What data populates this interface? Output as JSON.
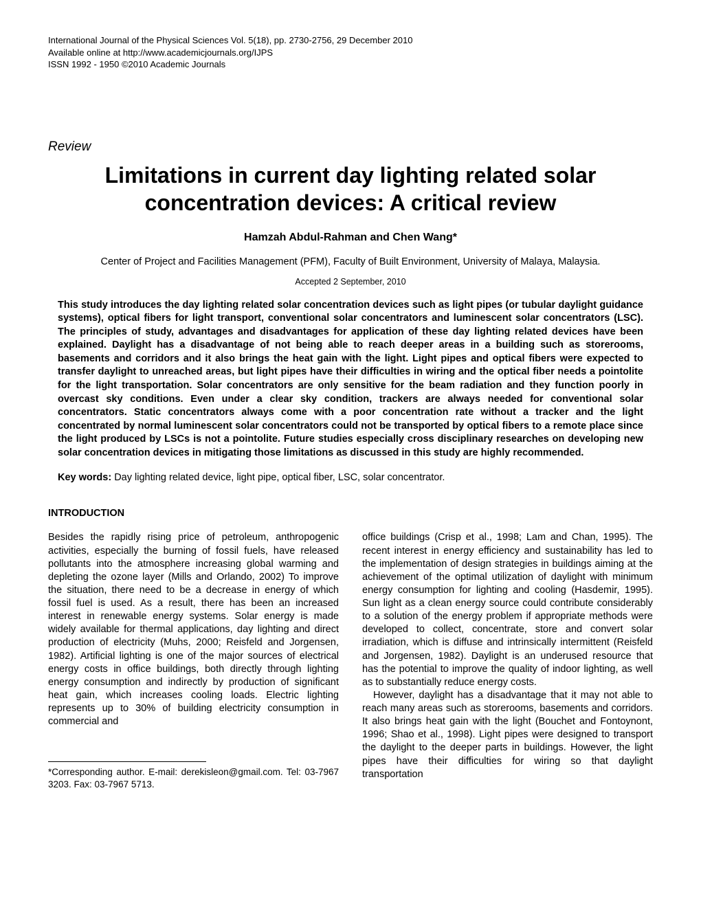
{
  "journal": {
    "line1": "International Journal of the Physical Sciences Vol. 5(18), pp. 2730-2756, 29 December 2010",
    "line2": "Available online at http://www.academicjournals.org/IJPS",
    "line3": "ISSN 1992 - 1950 ©2010 Academic Journals"
  },
  "review_label": "Review",
  "title": "Limitations in current day lighting related solar concentration devices: A critical review",
  "authors": "Hamzah Abdul-Rahman and Chen Wang*",
  "affiliation": "Center of Project and Facilities Management (PFM), Faculty of Built Environment, University of Malaya, Malaysia.",
  "accepted": "Accepted 2 September, 2010",
  "abstract": "This study introduces the day lighting related solar concentration devices such as light pipes (or tubular daylight guidance systems), optical fibers for light transport, conventional solar concentrators and luminescent solar concentrators (LSC). The principles of study, advantages and disadvantages for application of these day lighting related devices have been explained. Daylight has a disadvantage of not being able to reach deeper areas in a building such as storerooms, basements and corridors and it also brings the heat gain with the light. Light pipes and optical fibers were expected to transfer daylight to unreached areas, but light pipes have their difficulties in wiring and the optical fiber needs a pointolite for the light transportation. Solar concentrators are only sensitive for the beam radiation and they function poorly in overcast sky conditions. Even under a clear sky condition, trackers are always needed for conventional solar concentrators. Static concentrators always come with a poor concentration rate without a tracker and the light concentrated by normal luminescent solar concentrators could not be transported by optical fibers to a remote place since the light produced by LSCs is not a pointolite. Future studies especially cross disciplinary researches on developing new solar concentration devices in mitigating those limitations as discussed in this study are highly recommended.",
  "keywords_label": "Key words:",
  "keywords": " Day lighting related device, light pipe, optical fiber, LSC, solar concentrator.",
  "section_heading": "INTRODUCTION",
  "col_left_p1": "Besides the rapidly rising price of petroleum, anthropogenic activities, especially the burning of fossil fuels, have released pollutants into the atmosphere increasing global warming and depleting the ozone layer (Mills and Orlando, 2002) To improve the situation, there need to be a decrease in energy of which fossil fuel is used. As a result, there has been an increased interest in renewable energy systems. Solar energy is made widely available for thermal applications, day lighting and direct production of electricity (Muhs, 2000; Reisfeld and Jorgensen, 1982). Artificial lighting is one of the major sources of electrical energy costs in office buildings, both directly through lighting energy consumption and indirectly by production of significant heat gain, which increases cooling loads. Electric lighting represents up to 30% of building electricity consumption in commercial and",
  "col_right_p1": "office buildings (Crisp et al., 1998; Lam and Chan, 1995). The recent interest in energy efficiency and sustainability has led to the implementation of design strategies in buildings aiming at the achievement of the optimal utilization of daylight with minimum energy consumption for lighting and cooling (Hasdemir, 1995). Sun light as a clean energy source could contribute considerably to a solution of the energy problem if appropriate methods were developed to collect, concentrate, store and convert solar irradiation, which is diffuse and intrinsically intermittent (Reisfeld and Jorgensen, 1982). Daylight is an underused resource that has the potential to improve the quality of indoor lighting, as well as to substantially reduce energy costs.",
  "col_right_p2": "However, daylight has a disadvantage that it may not able to reach many areas such as storerooms, basements and corridors. It also brings heat gain with the light (Bouchet and Fontoynont, 1996; Shao et al., 1998). Light pipes were designed to transport the daylight to the deeper parts in buildings. However, the light pipes have their difficulties for  wiring so  that  daylight  transportation",
  "footnote": "*Corresponding author. E-mail: derekisleon@gmail.com. Tel: 03-7967 3203. Fax: 03-7967 5713.",
  "colors": {
    "text": "#000000",
    "background": "#ffffff"
  },
  "typography": {
    "base_font": "Arial",
    "title_size_pt": 24,
    "body_size_pt": 11
  }
}
